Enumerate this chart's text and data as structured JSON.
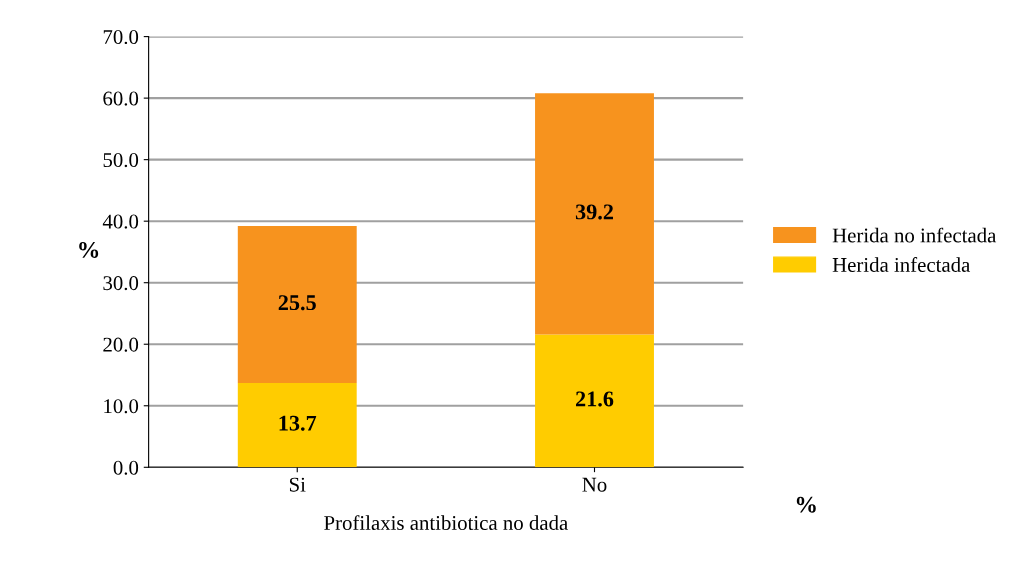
{
  "chart_data": {
    "type": "bar",
    "stacked": true,
    "categories": [
      "Si",
      "No"
    ],
    "series": [
      {
        "name": "Herida infectada",
        "color": "#ffcc00",
        "values": [
          13.7,
          21.6
        ]
      },
      {
        "name": "Herida no infectada",
        "color": "#f7931e",
        "values": [
          25.5,
          39.2
        ]
      }
    ],
    "ylim": [
      0,
      70
    ],
    "yticks": [
      {
        "value": 0,
        "label": "0.0"
      },
      {
        "value": 10,
        "label": "10.0"
      },
      {
        "value": 20,
        "label": "20.0"
      },
      {
        "value": 30,
        "label": "30.0"
      },
      {
        "value": 40,
        "label": "40.0"
      },
      {
        "value": 50,
        "label": "50.0"
      },
      {
        "value": 60,
        "label": "60.0"
      },
      {
        "value": 70,
        "label": "70.0"
      }
    ],
    "ylabel": "%",
    "xlabel": "Profilaxis antibiotica no dada",
    "annotations": [
      "%"
    ],
    "data_labels": true,
    "grid": "y",
    "legend": "right"
  }
}
